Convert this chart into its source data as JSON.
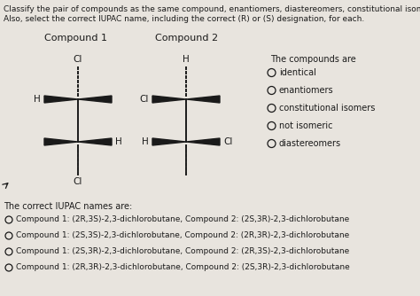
{
  "bg_color": "#e8e4de",
  "title_line1": "Classify the pair of compounds as the same compound, enantiomers, diastereomers, constitutional isomers, or not isomeric.",
  "title_line2": "Also, select the correct IUPAC name, including the correct (R) or (S) designation, for each.",
  "compound1_label": "Compound 1",
  "compound2_label": "Compound 2",
  "compounds_are_label": "The compounds are",
  "radio_options": [
    "identical",
    "enantiomers",
    "constitutional isomers",
    "not isomeric",
    "diastereomers"
  ],
  "iupac_label": "The correct IUPAC names are:",
  "iupac_options": [
    "Compound 1: (2R,3S)-2,3-dichlorobutane, Compound 2: (2S,3R)-2,3-dichlorobutane",
    "Compound 1: (2S,3S)-2,3-dichlorobutane, Compound 2: (2R,3R)-2,3-dichlorobutane",
    "Compound 1: (2S,3R)-2,3-dichlorobutane, Compound 2: (2R,3S)-2,3-dichlorobutane",
    "Compound 1: (2R,3R)-2,3-dichlorobutane, Compound 2: (2S,3R)-2,3-dichlorobutane"
  ],
  "text_color": "#1a1a1a",
  "font_size_title": 6.5,
  "font_size_labels": 8.0,
  "font_size_options": 7.0,
  "font_size_iupac": 6.5
}
